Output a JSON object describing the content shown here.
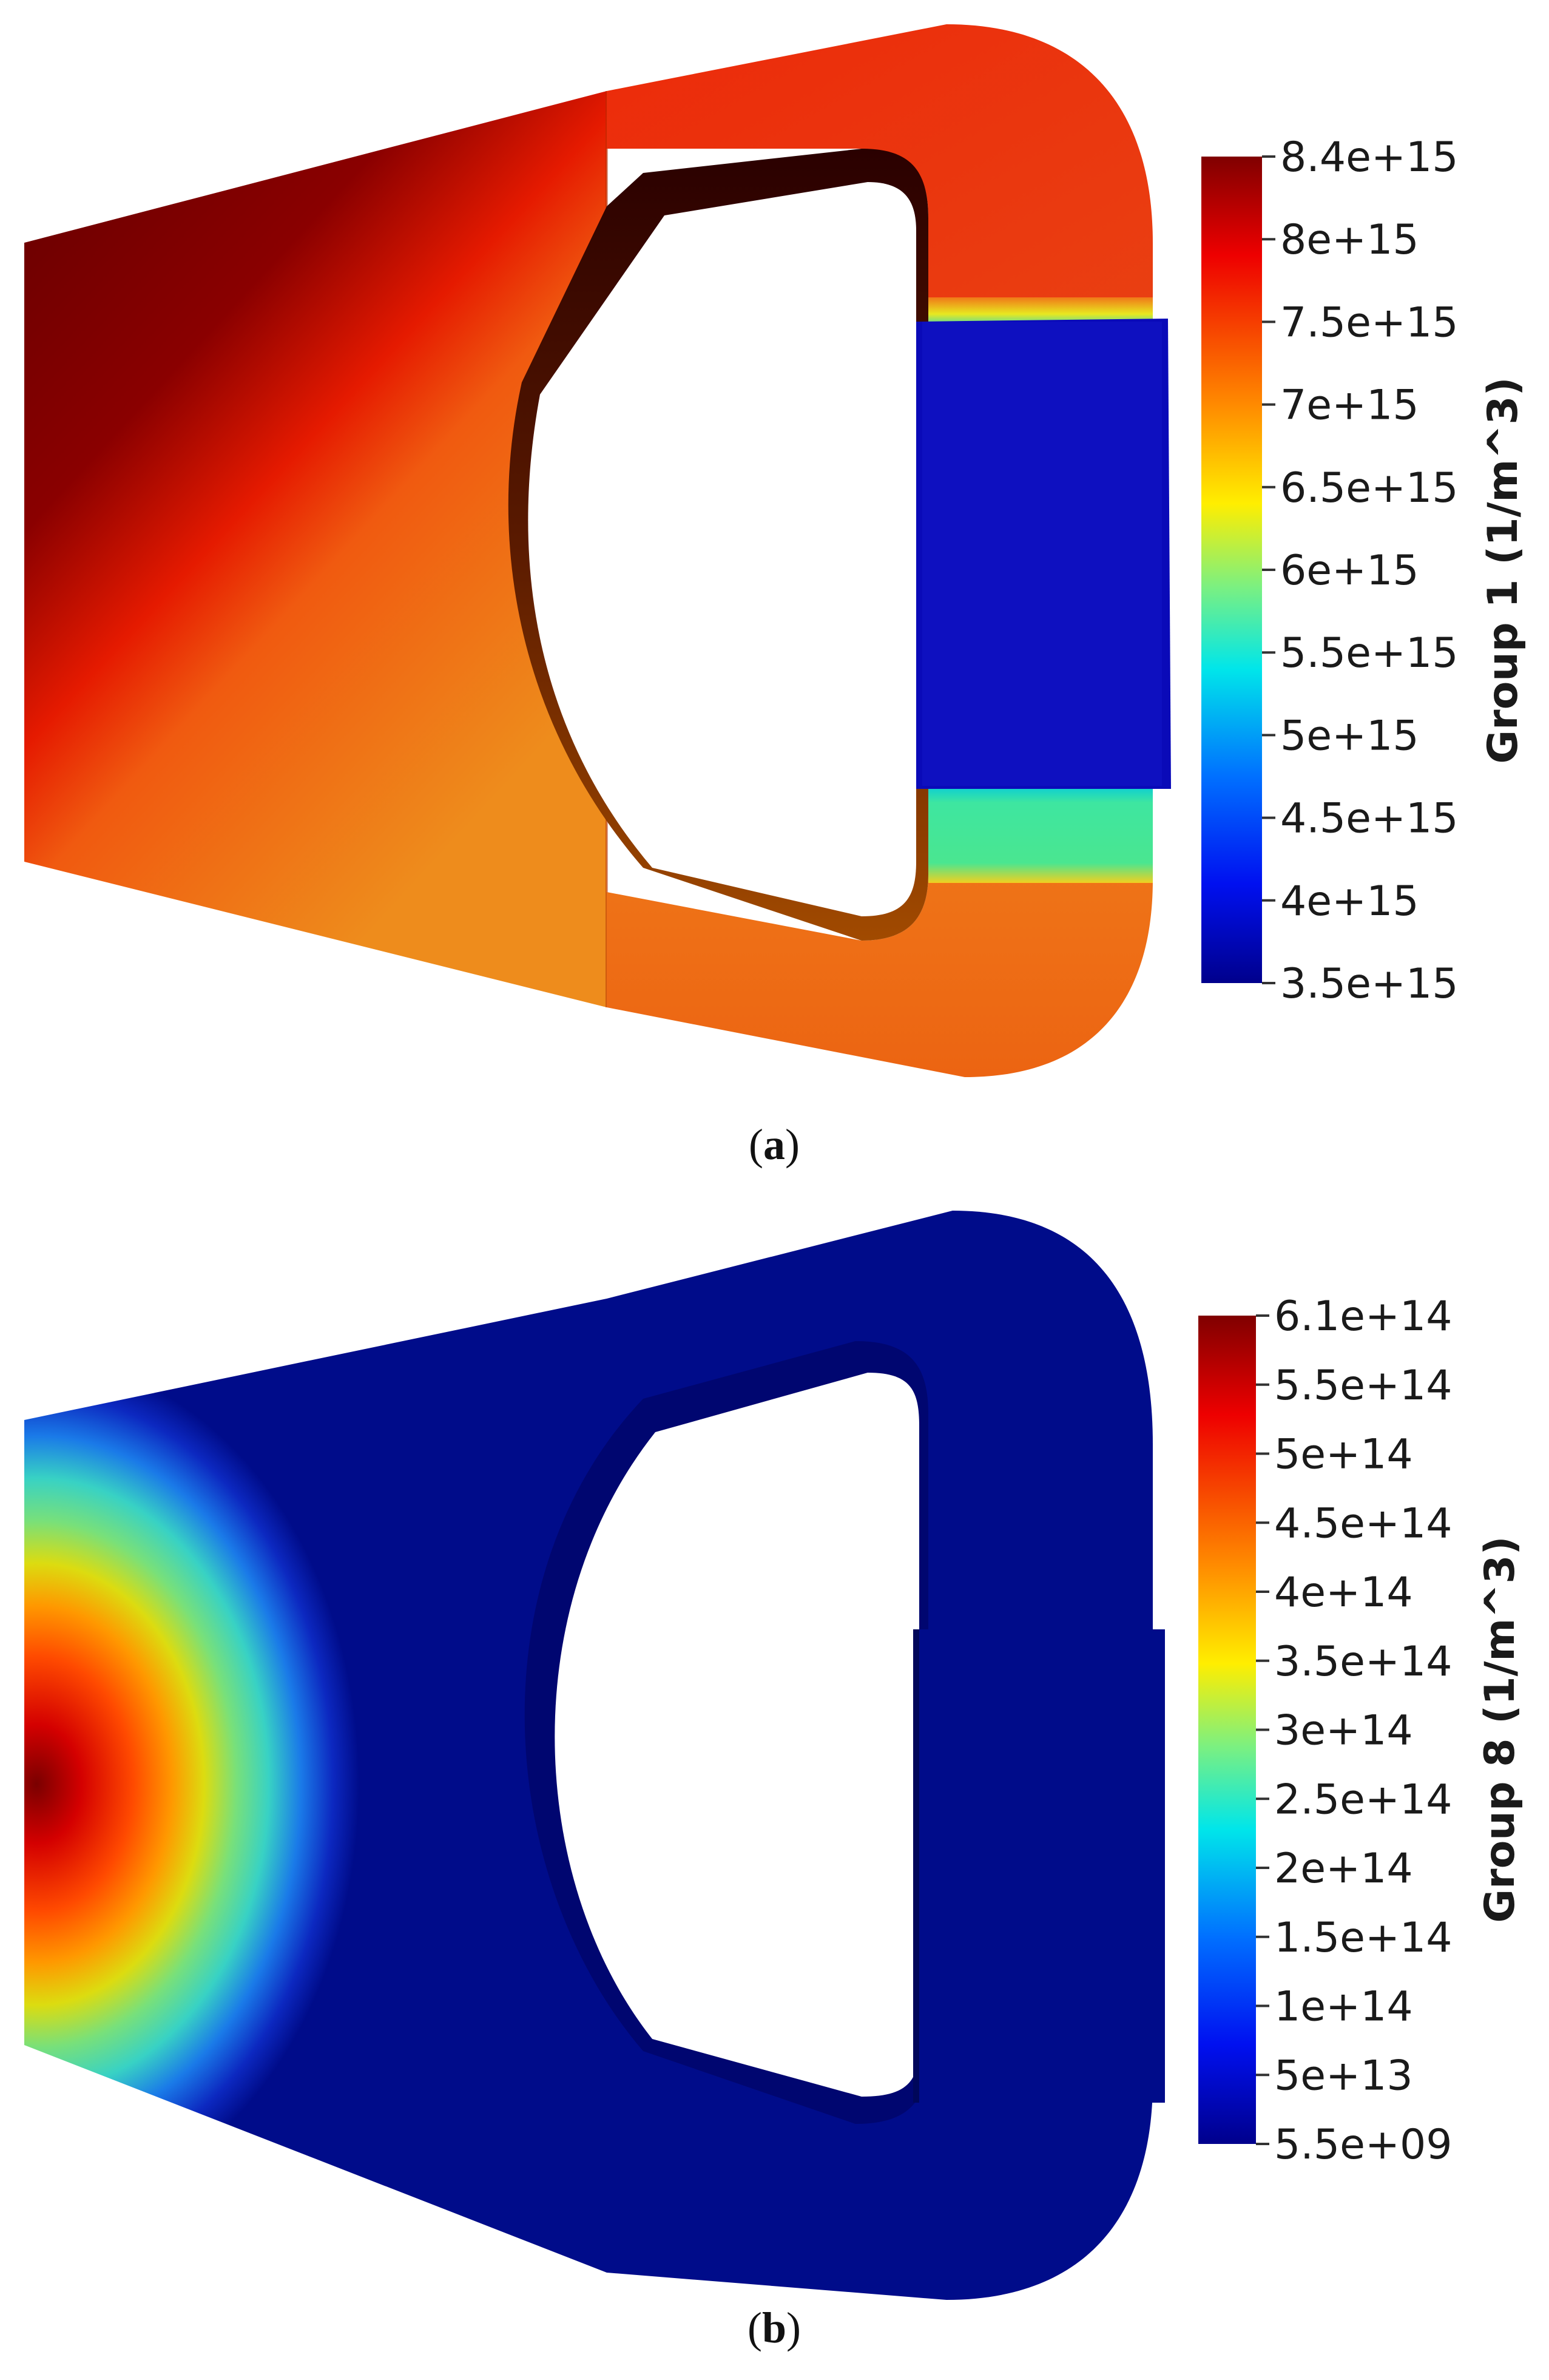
{
  "panels": [
    {
      "id": "a",
      "caption_open": "(",
      "caption_letter": "a",
      "caption_close": ")",
      "colorbar": {
        "title": "Group 1 (1/m^3)",
        "ticks": [
          "8.4e+15",
          "8e+15",
          "7.5e+15",
          "7e+15",
          "6.5e+15",
          "6e+15",
          "5.5e+15",
          "5e+15",
          "4.5e+15",
          "4e+15",
          "3.5e+15"
        ],
        "colormap": "jet"
      }
    },
    {
      "id": "b",
      "caption_open": "(",
      "caption_letter": "b",
      "caption_close": ")",
      "colorbar": {
        "title": "Group 8 (1/m^3)",
        "ticks": [
          "6.1e+14",
          "5.5e+14",
          "5e+14",
          "4.5e+14",
          "4e+14",
          "3.5e+14",
          "3e+14",
          "2.5e+14",
          "2e+14",
          "1.5e+14",
          "1e+14",
          "5e+13",
          "5.5e+09"
        ],
        "colormap": "jet"
      }
    }
  ],
  "colors": {
    "jet_dark_red": "#800000",
    "jet_red": "#ff2200",
    "jet_orange": "#ff9a00",
    "jet_yellow": "#ffee00",
    "jet_green": "#55e870",
    "jet_cyan": "#00e8e8",
    "jet_blue": "#0020ff",
    "jet_dark_blue": "#000a90"
  }
}
